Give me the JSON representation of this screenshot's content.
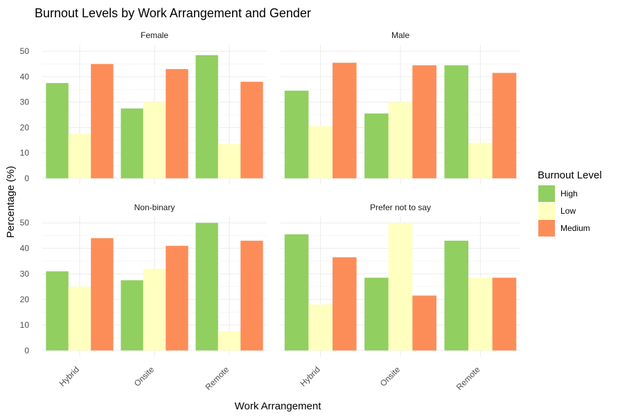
{
  "chart_data": {
    "type": "bar",
    "title": "Burnout Levels by Work Arrangement and Gender",
    "xlabel": "Work Arrangement",
    "ylabel": "Percentage (%)",
    "ylim": [
      0,
      50
    ],
    "yticks": [
      0,
      10,
      20,
      30,
      40,
      50
    ],
    "grid": true,
    "legend": {
      "title": "Burnout Level",
      "placement": "right",
      "entries": [
        "High",
        "Low",
        "Medium"
      ]
    },
    "colors": {
      "High": "#91cf60",
      "Low": "#ffffbf",
      "Medium": "#fc8d59"
    },
    "categories": [
      "Hybrid",
      "Onsite",
      "Remote"
    ],
    "panels": [
      {
        "facet": "Female",
        "series": [
          {
            "name": "High",
            "values": [
              37.5,
              27.5,
              48.5
            ]
          },
          {
            "name": "Low",
            "values": [
              17.5,
              30.0,
              13.5
            ]
          },
          {
            "name": "Medium",
            "values": [
              45.0,
              43.0,
              38.0
            ]
          }
        ]
      },
      {
        "facet": "Male",
        "series": [
          {
            "name": "High",
            "values": [
              34.5,
              25.5,
              44.5
            ]
          },
          {
            "name": "Low",
            "values": [
              20.5,
              30.0,
              14.0
            ]
          },
          {
            "name": "Medium",
            "values": [
              45.5,
              44.5,
              41.5
            ]
          }
        ]
      },
      {
        "facet": "Non-binary",
        "series": [
          {
            "name": "High",
            "values": [
              31.0,
              27.5,
              50.0
            ]
          },
          {
            "name": "Low",
            "values": [
              25.0,
              32.0,
              7.5
            ]
          },
          {
            "name": "Medium",
            "values": [
              44.0,
              41.0,
              43.0
            ]
          }
        ]
      },
      {
        "facet": "Prefer not to say",
        "series": [
          {
            "name": "High",
            "values": [
              45.5,
              28.5,
              43.0
            ]
          },
          {
            "name": "Low",
            "values": [
              18.0,
              50.0,
              28.5
            ]
          },
          {
            "name": "Medium",
            "values": [
              36.5,
              21.5,
              28.5
            ]
          }
        ]
      }
    ]
  }
}
